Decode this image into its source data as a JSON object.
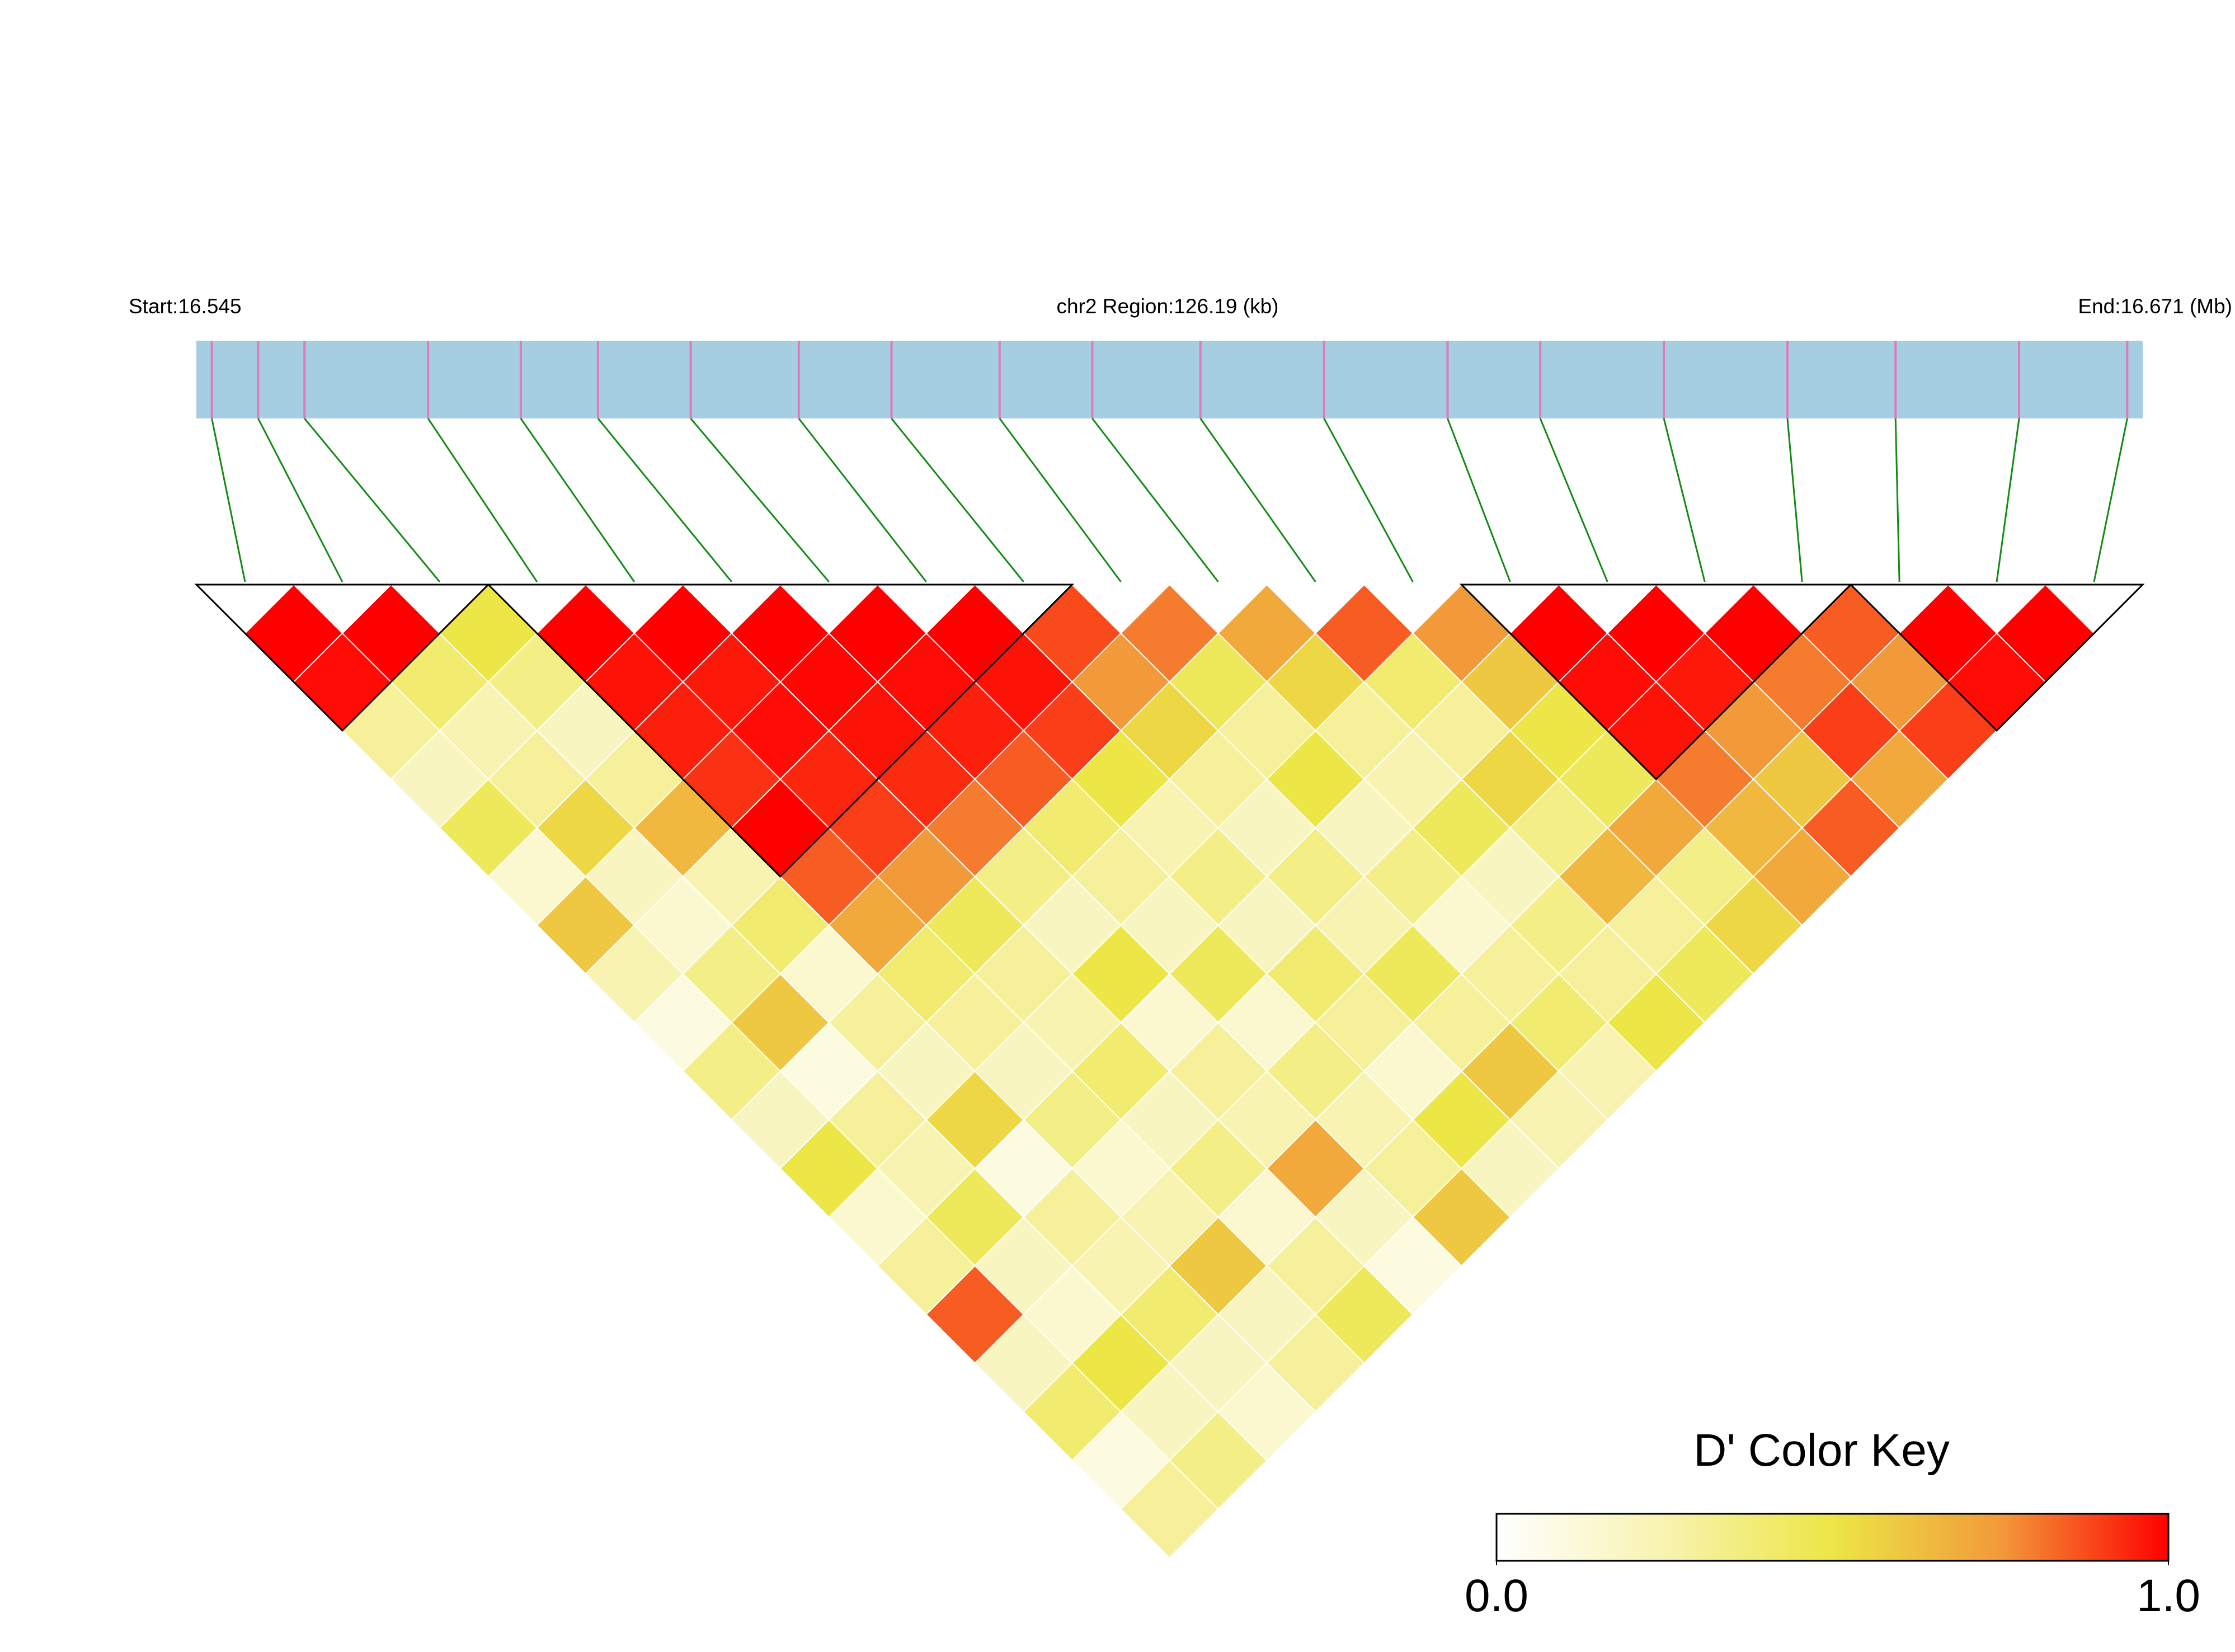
{
  "chart_data": {
    "type": "ld_heatmap",
    "start_label": "Start:16.545",
    "region_label": "chr2 Region:126.19 (kb)",
    "end_label": "End:16.671 (Mb)",
    "key_title": "D' Color Key",
    "xlim": [
      16.545,
      16.671
    ],
    "positions": [
      16.546,
      16.549,
      16.552,
      16.56,
      16.566,
      16.571,
      16.577,
      16.584,
      16.59,
      16.597,
      16.603,
      16.61,
      16.618,
      16.626,
      16.632,
      16.64,
      16.648,
      16.655,
      16.663,
      16.67
    ],
    "dprime": [
      [
        1,
        0.98,
        0.3,
        0.2,
        0.45,
        0.15,
        0.6,
        0.25,
        0.1,
        0.35,
        0.2,
        0.5,
        0.15,
        0.3,
        0.85,
        0.2,
        0.4,
        0.1,
        0.3
      ],
      [
        1,
        0.4,
        0.25,
        0.3,
        0.55,
        0.2,
        0.15,
        0.35,
        0.6,
        0.1,
        0.3,
        0.25,
        0.45,
        0.2,
        0.15,
        0.5,
        0.2,
        0.35
      ],
      [
        0.5,
        0.35,
        0.2,
        0.3,
        0.65,
        0.25,
        0.4,
        0.15,
        0.3,
        0.2,
        0.55,
        0.1,
        0.3,
        0.25,
        0.4,
        0.2,
        0.15
      ],
      [
        1,
        0.97,
        0.95,
        0.92,
        1,
        0.85,
        0.7,
        0.4,
        0.3,
        0.2,
        0.35,
        0.15,
        0.25,
        0.6,
        0.2,
        0.3
      ],
      [
        1,
        0.96,
        0.98,
        0.94,
        0.9,
        0.75,
        0.45,
        0.3,
        0.25,
        0.4,
        0.2,
        0.35,
        0.15,
        0.3,
        0.45
      ],
      [
        1,
        0.99,
        0.97,
        0.93,
        0.8,
        0.35,
        0.2,
        0.5,
        0.15,
        0.3,
        0.25,
        0.7,
        0.2,
        0.1
      ],
      [
        1,
        0.98,
        0.95,
        0.85,
        0.4,
        0.3,
        0.2,
        0.45,
        0.15,
        0.35,
        0.25,
        0.3,
        0.6
      ],
      [
        1,
        0.97,
        0.9,
        0.5,
        0.25,
        0.35,
        0.2,
        0.4,
        0.3,
        0.15,
        0.5,
        0.2
      ],
      [
        0.88,
        0.75,
        0.55,
        0.3,
        0.2,
        0.35,
        0.25,
        0.45,
        0.3,
        0.6,
        0.25
      ],
      [
        0.8,
        0.45,
        0.3,
        0.5,
        0.2,
        0.35,
        0.15,
        0.3,
        0.4,
        0.25
      ],
      [
        0.7,
        0.55,
        0.3,
        0.25,
        0.45,
        0.2,
        0.35,
        0.3,
        0.5
      ],
      [
        0.85,
        0.4,
        0.3,
        0.55,
        0.35,
        0.65,
        0.3,
        0.45
      ],
      [
        0.75,
        0.6,
        0.5,
        0.45,
        0.7,
        0.35,
        0.55
      ],
      [
        1,
        0.98,
        0.97,
        0.8,
        0.65,
        0.7
      ],
      [
        1,
        0.96,
        0.75,
        0.6,
        0.85
      ],
      [
        1,
        0.8,
        0.9,
        0.7
      ],
      [
        0.85,
        0.75,
        0.9
      ],
      [
        1,
        0.98
      ],
      [
        1
      ]
    ],
    "blocks": [
      [
        0,
        2
      ],
      [
        3,
        8
      ],
      [
        13,
        16
      ],
      [
        17,
        19
      ]
    ],
    "colors": [
      "#ffffff",
      "#f8f3b0",
      "#ece646",
      "#f29a3a",
      "#ff0000"
    ],
    "key_ticks": [
      {
        "value": 0,
        "label": "0.0"
      },
      {
        "value": 1,
        "label": "1.0"
      }
    ],
    "bar_color": "#a6cee3",
    "snp_line_color": "#e07ab8",
    "link_color": "#138a13"
  }
}
